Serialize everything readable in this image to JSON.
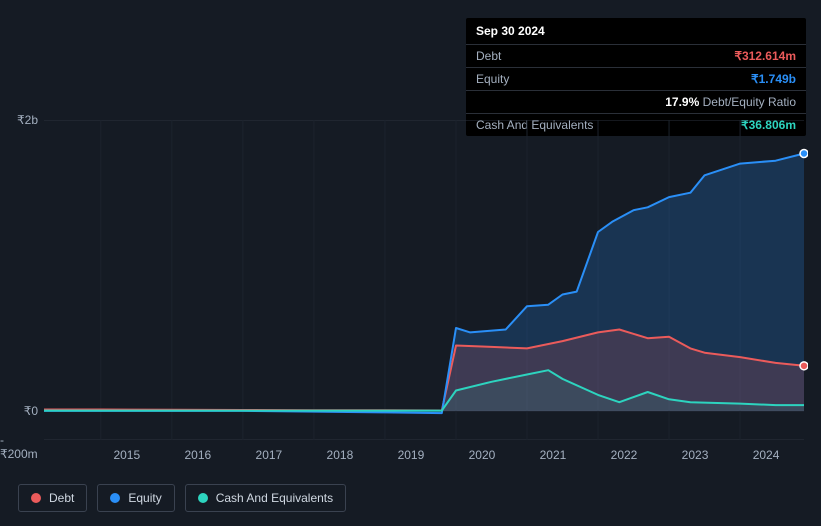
{
  "tooltip": {
    "date": "Sep 30 2024",
    "rows": [
      {
        "label": "Debt",
        "value": "₹312.614m",
        "cls": "debt"
      },
      {
        "label": "Equity",
        "value": "₹1.749b",
        "cls": "equity"
      },
      {
        "label": "",
        "value": "17.9%",
        "suffix": "Debt/Equity Ratio",
        "cls": ""
      },
      {
        "label": "Cash And Equivalents",
        "value": "₹36.806m",
        "cls": "cash"
      }
    ]
  },
  "chart": {
    "type": "area",
    "background_color": "#151b24",
    "grid_color": "#2a313c",
    "x_years": [
      2015,
      2016,
      2017,
      2018,
      2019,
      2020,
      2021,
      2022,
      2023,
      2024
    ],
    "x_range": [
      2014.2,
      2024.9
    ],
    "y_range_m": [
      -200,
      2000
    ],
    "y_ticks": [
      {
        "v": 2000,
        "label": "₹2b"
      },
      {
        "v": 0,
        "label": "₹0"
      },
      {
        "v": -200,
        "label": "-₹200m"
      }
    ],
    "series": [
      {
        "name": "Debt",
        "color": "#eb5b5b",
        "fill_opacity": 0.18,
        "points": [
          [
            2014.2,
            10
          ],
          [
            2015,
            10
          ],
          [
            2016,
            8
          ],
          [
            2017,
            6
          ],
          [
            2018,
            5
          ],
          [
            2019,
            4
          ],
          [
            2019.8,
            3
          ],
          [
            2020,
            450
          ],
          [
            2020.5,
            440
          ],
          [
            2021,
            430
          ],
          [
            2021.5,
            480
          ],
          [
            2022,
            540
          ],
          [
            2022.3,
            560
          ],
          [
            2022.7,
            500
          ],
          [
            2023,
            510
          ],
          [
            2023.3,
            430
          ],
          [
            2023.5,
            400
          ],
          [
            2024,
            370
          ],
          [
            2024.5,
            330
          ],
          [
            2024.9,
            310
          ]
        ],
        "end_marker": true
      },
      {
        "name": "Equity",
        "color": "#2a8ff7",
        "fill_opacity": 0.22,
        "points": [
          [
            2014.2,
            0
          ],
          [
            2015,
            0
          ],
          [
            2016,
            0
          ],
          [
            2017,
            0
          ],
          [
            2018,
            -5
          ],
          [
            2019,
            -10
          ],
          [
            2019.8,
            -15
          ],
          [
            2020,
            570
          ],
          [
            2020.2,
            540
          ],
          [
            2020.7,
            560
          ],
          [
            2021,
            720
          ],
          [
            2021.3,
            730
          ],
          [
            2021.5,
            800
          ],
          [
            2021.7,
            820
          ],
          [
            2022,
            1230
          ],
          [
            2022.2,
            1300
          ],
          [
            2022.5,
            1380
          ],
          [
            2022.7,
            1400
          ],
          [
            2023,
            1470
          ],
          [
            2023.3,
            1500
          ],
          [
            2023.5,
            1620
          ],
          [
            2024,
            1700
          ],
          [
            2024.5,
            1720
          ],
          [
            2024.9,
            1770
          ]
        ],
        "end_marker": true
      },
      {
        "name": "Cash And Equivalents",
        "color": "#2dd4bf",
        "fill_opacity": 0.1,
        "points": [
          [
            2014.2,
            2
          ],
          [
            2015,
            2
          ],
          [
            2016,
            2
          ],
          [
            2017,
            2
          ],
          [
            2018,
            2
          ],
          [
            2019,
            2
          ],
          [
            2019.8,
            2
          ],
          [
            2020,
            140
          ],
          [
            2020.5,
            200
          ],
          [
            2021,
            250
          ],
          [
            2021.3,
            280
          ],
          [
            2021.5,
            220
          ],
          [
            2022,
            110
          ],
          [
            2022.3,
            60
          ],
          [
            2022.7,
            130
          ],
          [
            2023,
            80
          ],
          [
            2023.3,
            60
          ],
          [
            2024,
            50
          ],
          [
            2024.5,
            40
          ],
          [
            2024.9,
            40
          ]
        ],
        "end_marker": false
      }
    ],
    "legend": [
      {
        "label": "Debt",
        "color": "#eb5b5b"
      },
      {
        "label": "Equity",
        "color": "#2a8ff7"
      },
      {
        "label": "Cash And Equivalents",
        "color": "#2dd4bf"
      }
    ]
  }
}
